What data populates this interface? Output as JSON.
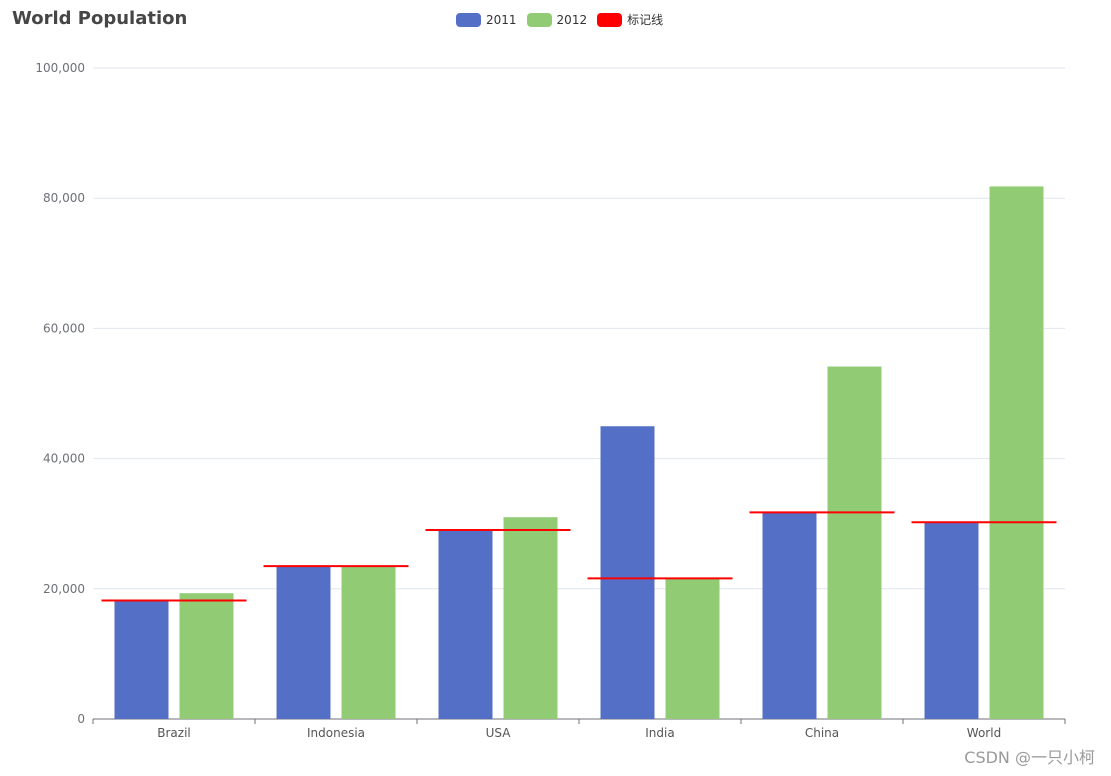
{
  "chart_data": {
    "type": "bar",
    "title": "World Population",
    "categories": [
      "Brazil",
      "Indonesia",
      "USA",
      "India",
      "China",
      "World"
    ],
    "series": [
      {
        "name": "2011",
        "color": "#5470c6",
        "values": [
          18203,
          23489,
          29034,
          44970,
          31744,
          30230
        ]
      },
      {
        "name": "2012",
        "color": "#91cc75",
        "values": [
          19325,
          23438,
          31000,
          21594,
          54141,
          81807
        ]
      }
    ],
    "marker_line": {
      "name": "标记线",
      "color": "#ff0000",
      "values": [
        18203,
        23489,
        29034,
        21594,
        31744,
        30230
      ]
    },
    "ylim": [
      0,
      100000
    ],
    "y_ticks": [
      0,
      20000,
      40000,
      60000,
      80000,
      100000
    ],
    "y_tick_labels": [
      "0",
      "20,000",
      "40,000",
      "60,000",
      "80,000",
      "100,000"
    ],
    "grid": true,
    "legend_position": "top-center"
  },
  "watermark": "CSDN @一只小柯"
}
